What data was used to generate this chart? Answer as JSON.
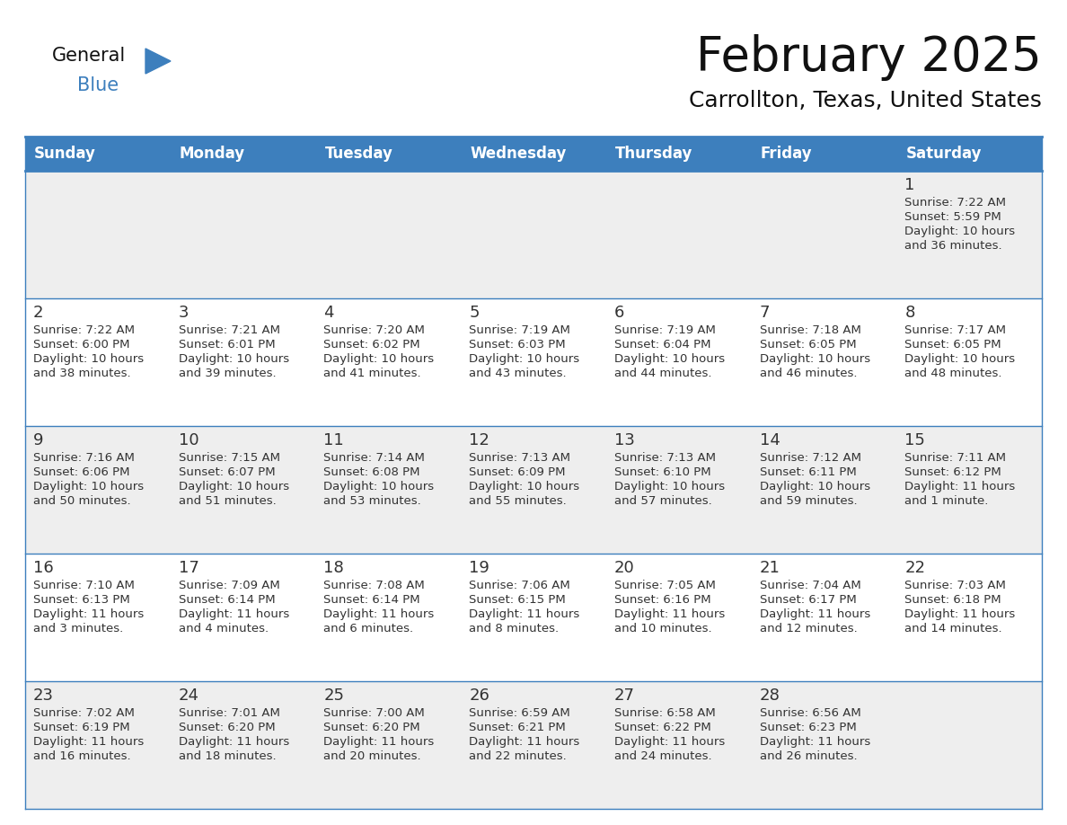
{
  "title": "February 2025",
  "subtitle": "Carrollton, Texas, United States",
  "header_color": "#3d7fbd",
  "header_text_color": "#ffffff",
  "day_names": [
    "Sunday",
    "Monday",
    "Tuesday",
    "Wednesday",
    "Thursday",
    "Friday",
    "Saturday"
  ],
  "background_color": "#ffffff",
  "cell_bg_row0": "#eeeeee",
  "cell_bg_row1": "#ffffff",
  "border_color": "#3d7fbd",
  "text_color": "#333333",
  "days": [
    {
      "day": 1,
      "col": 6,
      "row": 0,
      "sunrise": "7:22 AM",
      "sunset": "5:59 PM",
      "daylight_line1": "Daylight: 10 hours",
      "daylight_line2": "and 36 minutes."
    },
    {
      "day": 2,
      "col": 0,
      "row": 1,
      "sunrise": "7:22 AM",
      "sunset": "6:00 PM",
      "daylight_line1": "Daylight: 10 hours",
      "daylight_line2": "and 38 minutes."
    },
    {
      "day": 3,
      "col": 1,
      "row": 1,
      "sunrise": "7:21 AM",
      "sunset": "6:01 PM",
      "daylight_line1": "Daylight: 10 hours",
      "daylight_line2": "and 39 minutes."
    },
    {
      "day": 4,
      "col": 2,
      "row": 1,
      "sunrise": "7:20 AM",
      "sunset": "6:02 PM",
      "daylight_line1": "Daylight: 10 hours",
      "daylight_line2": "and 41 minutes."
    },
    {
      "day": 5,
      "col": 3,
      "row": 1,
      "sunrise": "7:19 AM",
      "sunset": "6:03 PM",
      "daylight_line1": "Daylight: 10 hours",
      "daylight_line2": "and 43 minutes."
    },
    {
      "day": 6,
      "col": 4,
      "row": 1,
      "sunrise": "7:19 AM",
      "sunset": "6:04 PM",
      "daylight_line1": "Daylight: 10 hours",
      "daylight_line2": "and 44 minutes."
    },
    {
      "day": 7,
      "col": 5,
      "row": 1,
      "sunrise": "7:18 AM",
      "sunset": "6:05 PM",
      "daylight_line1": "Daylight: 10 hours",
      "daylight_line2": "and 46 minutes."
    },
    {
      "day": 8,
      "col": 6,
      "row": 1,
      "sunrise": "7:17 AM",
      "sunset": "6:05 PM",
      "daylight_line1": "Daylight: 10 hours",
      "daylight_line2": "and 48 minutes."
    },
    {
      "day": 9,
      "col": 0,
      "row": 2,
      "sunrise": "7:16 AM",
      "sunset": "6:06 PM",
      "daylight_line1": "Daylight: 10 hours",
      "daylight_line2": "and 50 minutes."
    },
    {
      "day": 10,
      "col": 1,
      "row": 2,
      "sunrise": "7:15 AM",
      "sunset": "6:07 PM",
      "daylight_line1": "Daylight: 10 hours",
      "daylight_line2": "and 51 minutes."
    },
    {
      "day": 11,
      "col": 2,
      "row": 2,
      "sunrise": "7:14 AM",
      "sunset": "6:08 PM",
      "daylight_line1": "Daylight: 10 hours",
      "daylight_line2": "and 53 minutes."
    },
    {
      "day": 12,
      "col": 3,
      "row": 2,
      "sunrise": "7:13 AM",
      "sunset": "6:09 PM",
      "daylight_line1": "Daylight: 10 hours",
      "daylight_line2": "and 55 minutes."
    },
    {
      "day": 13,
      "col": 4,
      "row": 2,
      "sunrise": "7:13 AM",
      "sunset": "6:10 PM",
      "daylight_line1": "Daylight: 10 hours",
      "daylight_line2": "and 57 minutes."
    },
    {
      "day": 14,
      "col": 5,
      "row": 2,
      "sunrise": "7:12 AM",
      "sunset": "6:11 PM",
      "daylight_line1": "Daylight: 10 hours",
      "daylight_line2": "and 59 minutes."
    },
    {
      "day": 15,
      "col": 6,
      "row": 2,
      "sunrise": "7:11 AM",
      "sunset": "6:12 PM",
      "daylight_line1": "Daylight: 11 hours",
      "daylight_line2": "and 1 minute."
    },
    {
      "day": 16,
      "col": 0,
      "row": 3,
      "sunrise": "7:10 AM",
      "sunset": "6:13 PM",
      "daylight_line1": "Daylight: 11 hours",
      "daylight_line2": "and 3 minutes."
    },
    {
      "day": 17,
      "col": 1,
      "row": 3,
      "sunrise": "7:09 AM",
      "sunset": "6:14 PM",
      "daylight_line1": "Daylight: 11 hours",
      "daylight_line2": "and 4 minutes."
    },
    {
      "day": 18,
      "col": 2,
      "row": 3,
      "sunrise": "7:08 AM",
      "sunset": "6:14 PM",
      "daylight_line1": "Daylight: 11 hours",
      "daylight_line2": "and 6 minutes."
    },
    {
      "day": 19,
      "col": 3,
      "row": 3,
      "sunrise": "7:06 AM",
      "sunset": "6:15 PM",
      "daylight_line1": "Daylight: 11 hours",
      "daylight_line2": "and 8 minutes."
    },
    {
      "day": 20,
      "col": 4,
      "row": 3,
      "sunrise": "7:05 AM",
      "sunset": "6:16 PM",
      "daylight_line1": "Daylight: 11 hours",
      "daylight_line2": "and 10 minutes."
    },
    {
      "day": 21,
      "col": 5,
      "row": 3,
      "sunrise": "7:04 AM",
      "sunset": "6:17 PM",
      "daylight_line1": "Daylight: 11 hours",
      "daylight_line2": "and 12 minutes."
    },
    {
      "day": 22,
      "col": 6,
      "row": 3,
      "sunrise": "7:03 AM",
      "sunset": "6:18 PM",
      "daylight_line1": "Daylight: 11 hours",
      "daylight_line2": "and 14 minutes."
    },
    {
      "day": 23,
      "col": 0,
      "row": 4,
      "sunrise": "7:02 AM",
      "sunset": "6:19 PM",
      "daylight_line1": "Daylight: 11 hours",
      "daylight_line2": "and 16 minutes."
    },
    {
      "day": 24,
      "col": 1,
      "row": 4,
      "sunrise": "7:01 AM",
      "sunset": "6:20 PM",
      "daylight_line1": "Daylight: 11 hours",
      "daylight_line2": "and 18 minutes."
    },
    {
      "day": 25,
      "col": 2,
      "row": 4,
      "sunrise": "7:00 AM",
      "sunset": "6:20 PM",
      "daylight_line1": "Daylight: 11 hours",
      "daylight_line2": "and 20 minutes."
    },
    {
      "day": 26,
      "col": 3,
      "row": 4,
      "sunrise": "6:59 AM",
      "sunset": "6:21 PM",
      "daylight_line1": "Daylight: 11 hours",
      "daylight_line2": "and 22 minutes."
    },
    {
      "day": 27,
      "col": 4,
      "row": 4,
      "sunrise": "6:58 AM",
      "sunset": "6:22 PM",
      "daylight_line1": "Daylight: 11 hours",
      "daylight_line2": "and 24 minutes."
    },
    {
      "day": 28,
      "col": 5,
      "row": 4,
      "sunrise": "6:56 AM",
      "sunset": "6:23 PM",
      "daylight_line1": "Daylight: 11 hours",
      "daylight_line2": "and 26 minutes."
    }
  ],
  "logo_text1": "General",
  "logo_text2": "Blue",
  "logo_color1": "#111111",
  "logo_color2": "#3d7fbd",
  "logo_triangle_color": "#3d7fbd",
  "fig_width": 11.88,
  "fig_height": 9.18,
  "dpi": 100
}
